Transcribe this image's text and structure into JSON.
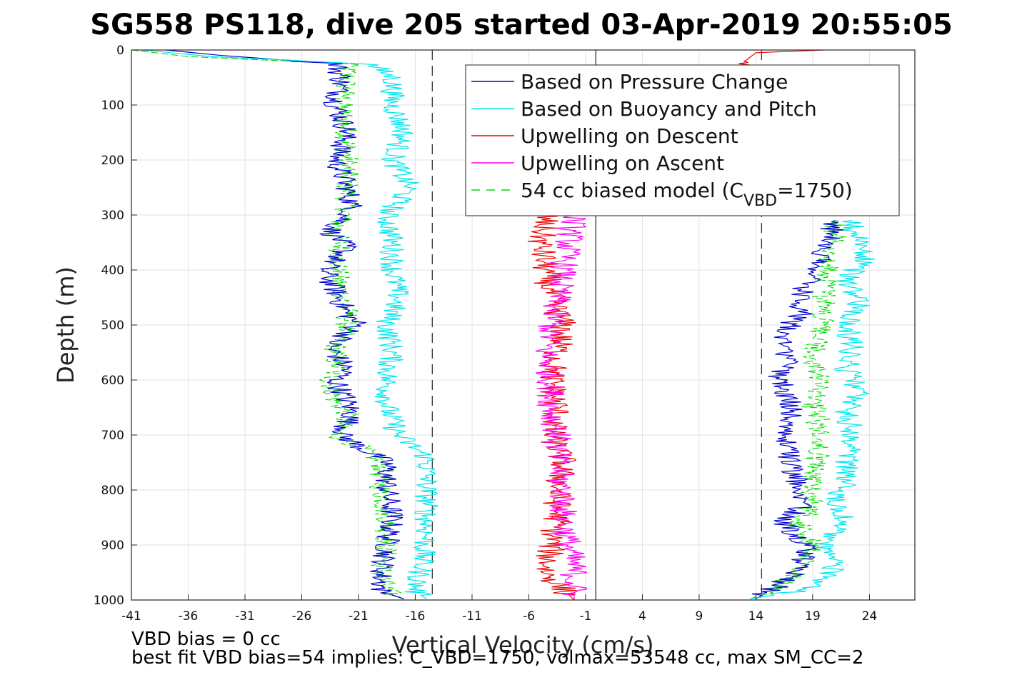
{
  "chart_data": {
    "type": "line",
    "title": "SG558 PS118, dive 205 started 03-Apr-2019 20:55:05",
    "xlabel": "Vertical Velocity (cm/s)",
    "ylabel": "Depth (m)",
    "xlim": [
      -41,
      28
    ],
    "ylim": [
      0,
      1000
    ],
    "y_reversed": true,
    "grid": true,
    "xticks": [
      "-41",
      "-36",
      "-31",
      "-26",
      "-21",
      "-16",
      "-11",
      "-6",
      "-1",
      "4",
      "9",
      "14",
      "19",
      "24"
    ],
    "yticks": [
      "0",
      "100",
      "200",
      "300",
      "400",
      "500",
      "600",
      "700",
      "800",
      "900",
      "1000"
    ],
    "legend": {
      "placement": "top-right",
      "entries": [
        {
          "label": "Based on Pressure Change",
          "color": "#0000cc",
          "style": "solid"
        },
        {
          "label": "Based on Buoyancy and Pitch",
          "color": "#00e5ee",
          "style": "solid"
        },
        {
          "label": "Upwelling on Descent",
          "color": "#ee0000",
          "style": "solid"
        },
        {
          "label": "Upwelling on Ascent",
          "color": "#ff00ee",
          "style": "solid"
        },
        {
          "label": "54 cc biased model (C",
          "sub": "VBD",
          "suffix": "=1750)",
          "color": "#00dd00",
          "style": "dashed"
        }
      ]
    },
    "reference_lines": {
      "dashed_x": [
        -14.5,
        14.5
      ],
      "solid_x": [
        -0.1
      ]
    },
    "series": [
      {
        "name": "Based on Pressure Change",
        "color": "#0000cc",
        "descent": [
          [
            -38,
            0
          ],
          [
            -33,
            10
          ],
          [
            -23,
            25
          ],
          [
            -22.5,
            50
          ],
          [
            -23,
            100
          ],
          [
            -22,
            150
          ],
          [
            -23,
            200
          ],
          [
            -22,
            250
          ],
          [
            -21.5,
            290
          ],
          [
            -23.5,
            330
          ],
          [
            -22,
            360
          ],
          [
            -24,
            400
          ],
          [
            -23,
            440
          ],
          [
            -22,
            480
          ],
          [
            -21,
            500
          ],
          [
            -23.5,
            540
          ],
          [
            -22,
            580
          ],
          [
            -23,
            600
          ],
          [
            -22,
            640
          ],
          [
            -21.5,
            660
          ],
          [
            -22.5,
            700
          ],
          [
            -21,
            720
          ],
          [
            -18.5,
            750
          ],
          [
            -18.5,
            800
          ],
          [
            -18,
            850
          ],
          [
            -18.5,
            900
          ],
          [
            -19,
            950
          ],
          [
            -19,
            985
          ],
          [
            -17,
            998
          ]
        ],
        "ascent": [
          [
            14,
            998
          ],
          [
            15.5,
            980
          ],
          [
            18,
            940
          ],
          [
            18.5,
            900
          ],
          [
            16.5,
            860
          ],
          [
            18.5,
            820
          ],
          [
            17.5,
            780
          ],
          [
            16.5,
            720
          ],
          [
            17,
            680
          ],
          [
            17,
            640
          ],
          [
            16,
            600
          ],
          [
            17,
            560
          ],
          [
            16,
            520
          ],
          [
            18,
            480
          ],
          [
            18,
            440
          ],
          [
            19,
            400
          ],
          [
            20,
            370
          ],
          [
            20.5,
            340
          ],
          [
            21,
            310
          ]
        ]
      },
      {
        "name": "Based on Buoyancy and Pitch",
        "color": "#00e5ee",
        "descent": [
          [
            -40,
            0
          ],
          [
            -34,
            12
          ],
          [
            -20,
            25
          ],
          [
            -18,
            50
          ],
          [
            -18,
            100
          ],
          [
            -17,
            150
          ],
          [
            -18,
            200
          ],
          [
            -16.5,
            250
          ],
          [
            -18.5,
            300
          ],
          [
            -18,
            350
          ],
          [
            -18,
            400
          ],
          [
            -17.5,
            450
          ],
          [
            -18.5,
            500
          ],
          [
            -18,
            550
          ],
          [
            -18.5,
            600
          ],
          [
            -18.5,
            650
          ],
          [
            -17.5,
            700
          ],
          [
            -15,
            740
          ],
          [
            -15,
            780
          ],
          [
            -15,
            820
          ],
          [
            -15,
            880
          ],
          [
            -15.5,
            940
          ],
          [
            -16,
            985
          ],
          [
            -15,
            998
          ]
        ],
        "ascent": [
          [
            13.5,
            998
          ],
          [
            19,
            980
          ],
          [
            21,
            940
          ],
          [
            20,
            900
          ],
          [
            22,
            860
          ],
          [
            21,
            820
          ],
          [
            22,
            780
          ],
          [
            22,
            740
          ],
          [
            22.5,
            700
          ],
          [
            22,
            660
          ],
          [
            23,
            620
          ],
          [
            22,
            580
          ],
          [
            22.5,
            540
          ],
          [
            22,
            500
          ],
          [
            23,
            460
          ],
          [
            22,
            420
          ],
          [
            23.5,
            380
          ],
          [
            23,
            340
          ],
          [
            22.5,
            310
          ]
        ]
      },
      {
        "name": "Upwelling on Descent",
        "color": "#ee0000",
        "values": [
          [
            20,
            0
          ],
          [
            14,
            5
          ],
          [
            -4.5,
            300
          ],
          [
            -5,
            350
          ],
          [
            -4.5,
            400
          ],
          [
            -4,
            450
          ],
          [
            -3,
            500
          ],
          [
            -3.5,
            550
          ],
          [
            -4,
            600
          ],
          [
            -3.5,
            650
          ],
          [
            -4,
            700
          ],
          [
            -3,
            750
          ],
          [
            -3.5,
            800
          ],
          [
            -3.5,
            850
          ],
          [
            -4,
            900
          ],
          [
            -4.5,
            950
          ],
          [
            -2,
            1000
          ]
        ]
      },
      {
        "name": "Upwelling on Ascent",
        "color": "#ff00ee",
        "values": [
          [
            -2,
            300
          ],
          [
            -2.5,
            350
          ],
          [
            -3,
            400
          ],
          [
            -3.5,
            450
          ],
          [
            -4,
            500
          ],
          [
            -4.5,
            550
          ],
          [
            -4,
            600
          ],
          [
            -4,
            650
          ],
          [
            -3.5,
            700
          ],
          [
            -3.5,
            750
          ],
          [
            -3,
            800
          ],
          [
            -3,
            850
          ],
          [
            -2.5,
            900
          ],
          [
            -2,
            950
          ],
          [
            -2,
            1000
          ]
        ]
      },
      {
        "name": "54 cc biased model (CVBD=1750)",
        "color": "#00dd00",
        "descent": [
          [
            -41,
            0
          ],
          [
            -36,
            12
          ],
          [
            -22,
            25
          ],
          [
            -22,
            50
          ],
          [
            -22.5,
            100
          ],
          [
            -22,
            150
          ],
          [
            -22,
            200
          ],
          [
            -22,
            250
          ],
          [
            -22,
            290
          ],
          [
            -23,
            330
          ],
          [
            -22.5,
            360
          ],
          [
            -23,
            400
          ],
          [
            -22.5,
            440
          ],
          [
            -22,
            480
          ],
          [
            -22,
            500
          ],
          [
            -23,
            540
          ],
          [
            -23,
            580
          ],
          [
            -23.5,
            600
          ],
          [
            -23,
            640
          ],
          [
            -22,
            660
          ],
          [
            -23,
            700
          ],
          [
            -21,
            720
          ],
          [
            -19,
            750
          ],
          [
            -19,
            800
          ],
          [
            -18.5,
            850
          ],
          [
            -18.5,
            900
          ],
          [
            -19,
            950
          ],
          [
            -18.5,
            985
          ],
          [
            -17,
            998
          ]
        ],
        "ascent": [
          [
            13.5,
            998
          ],
          [
            16,
            980
          ],
          [
            18,
            940
          ],
          [
            19,
            900
          ],
          [
            18,
            860
          ],
          [
            19,
            820
          ],
          [
            19,
            780
          ],
          [
            19.5,
            720
          ],
          [
            19.5,
            680
          ],
          [
            19,
            640
          ],
          [
            19.5,
            600
          ],
          [
            19,
            560
          ],
          [
            19.5,
            520
          ],
          [
            20,
            480
          ],
          [
            20,
            440
          ],
          [
            20.5,
            400
          ],
          [
            20.5,
            370
          ],
          [
            21,
            340
          ],
          [
            21,
            310
          ]
        ]
      }
    ]
  },
  "notes": {
    "line1": "VBD bias = 0 cc",
    "line2": "best fit VBD bias=54 implies: C_VBD=1750, volmax=53548 cc, max SM_CC=2"
  }
}
